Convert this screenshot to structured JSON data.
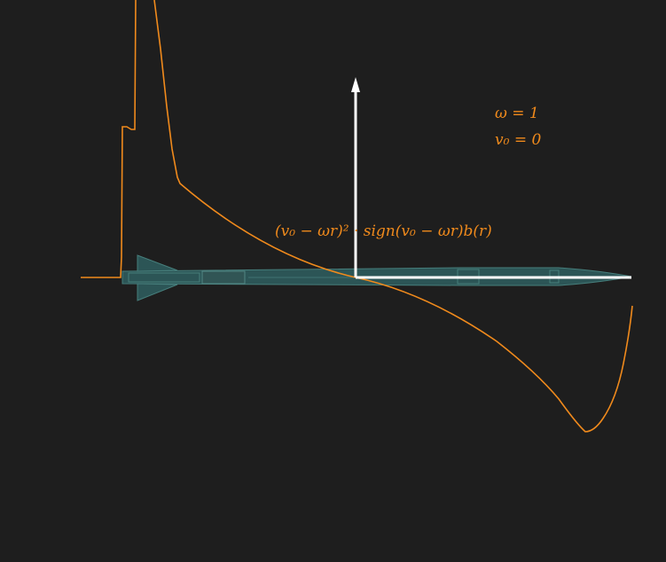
{
  "colors": {
    "background": "#1e1e1e",
    "curve": "#f08a1c",
    "axis": "#ffffff",
    "rocket_fill": "#2f5f60",
    "rocket_stroke": "#4e8f8c"
  },
  "params": {
    "omega_line": "ω = 1",
    "v0_line": "v₀ = 0"
  },
  "formula": {
    "text": "(v₀ − ωr)² · sign(v₀ − ωr)b(r)"
  }
}
